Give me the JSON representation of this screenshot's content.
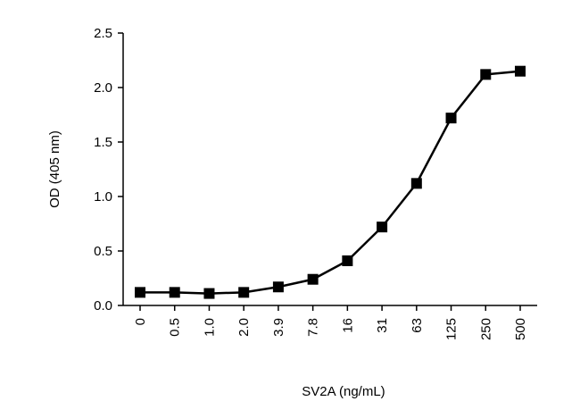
{
  "chart_data": {
    "type": "line",
    "title": "",
    "xlabel": "SV2A (ng/mL)",
    "ylabel": "OD (405 nm)",
    "categories": [
      "0",
      "0.5",
      "1.0",
      "2.0",
      "3.9",
      "7.8",
      "16",
      "31",
      "63",
      "125",
      "250",
      "500"
    ],
    "series": [
      {
        "name": "",
        "values": [
          0.12,
          0.12,
          0.11,
          0.12,
          0.17,
          0.24,
          0.41,
          0.72,
          1.12,
          1.72,
          2.12,
          2.15
        ],
        "marker": "square",
        "color": "#000000"
      }
    ],
    "ylim": [
      0.0,
      2.5
    ],
    "yticks": [
      "0.0",
      "0.5",
      "1.0",
      "1.5",
      "2.0",
      "2.5"
    ],
    "grid": false,
    "legend": "none"
  }
}
